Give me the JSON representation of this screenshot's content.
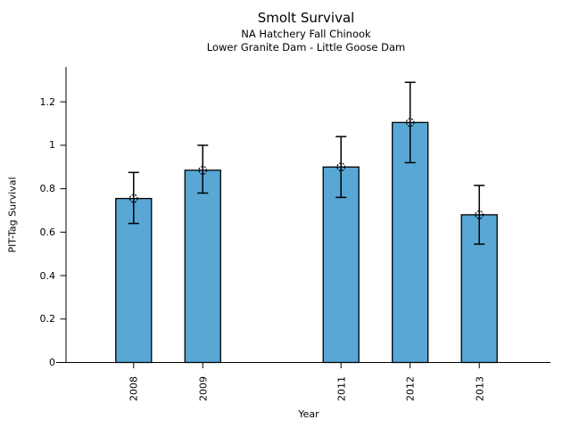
{
  "chart_data": {
    "type": "bar",
    "title": "Smolt Survival",
    "subtitle1": "NA Hatchery Fall Chinook",
    "subtitle2": "Lower Granite Dam - Little Goose Dam",
    "xlabel": "Year",
    "ylabel": "PIT-Tag Survival",
    "categories": [
      "2008",
      "2009",
      "2011",
      "2012",
      "2013"
    ],
    "x_numeric": [
      2008,
      2009,
      2011,
      2012,
      2013
    ],
    "values": [
      0.755,
      0.885,
      0.9,
      1.105,
      0.68
    ],
    "error_low": [
      0.64,
      0.78,
      0.76,
      0.92,
      0.545
    ],
    "error_high": [
      0.875,
      1.0,
      1.04,
      1.29,
      0.815
    ],
    "y_ticks": [
      0,
      0.2,
      0.4,
      0.6,
      0.8,
      1,
      1.2
    ],
    "y_tick_labels": [
      "0",
      "0.2",
      "0.4",
      "0.6",
      "0.8",
      "1",
      "1.2"
    ],
    "ylim": [
      0,
      1.361
    ],
    "xlim": [
      2006.88,
      2014.03
    ],
    "bar_color": "#58a7d5",
    "bar_edge_color": "#000000",
    "axis_color": "#000000",
    "background_color": "#ffffff",
    "bar_width_years": 0.52,
    "legend": "none",
    "grid": "off",
    "marker": "open-circle-dashed"
  }
}
